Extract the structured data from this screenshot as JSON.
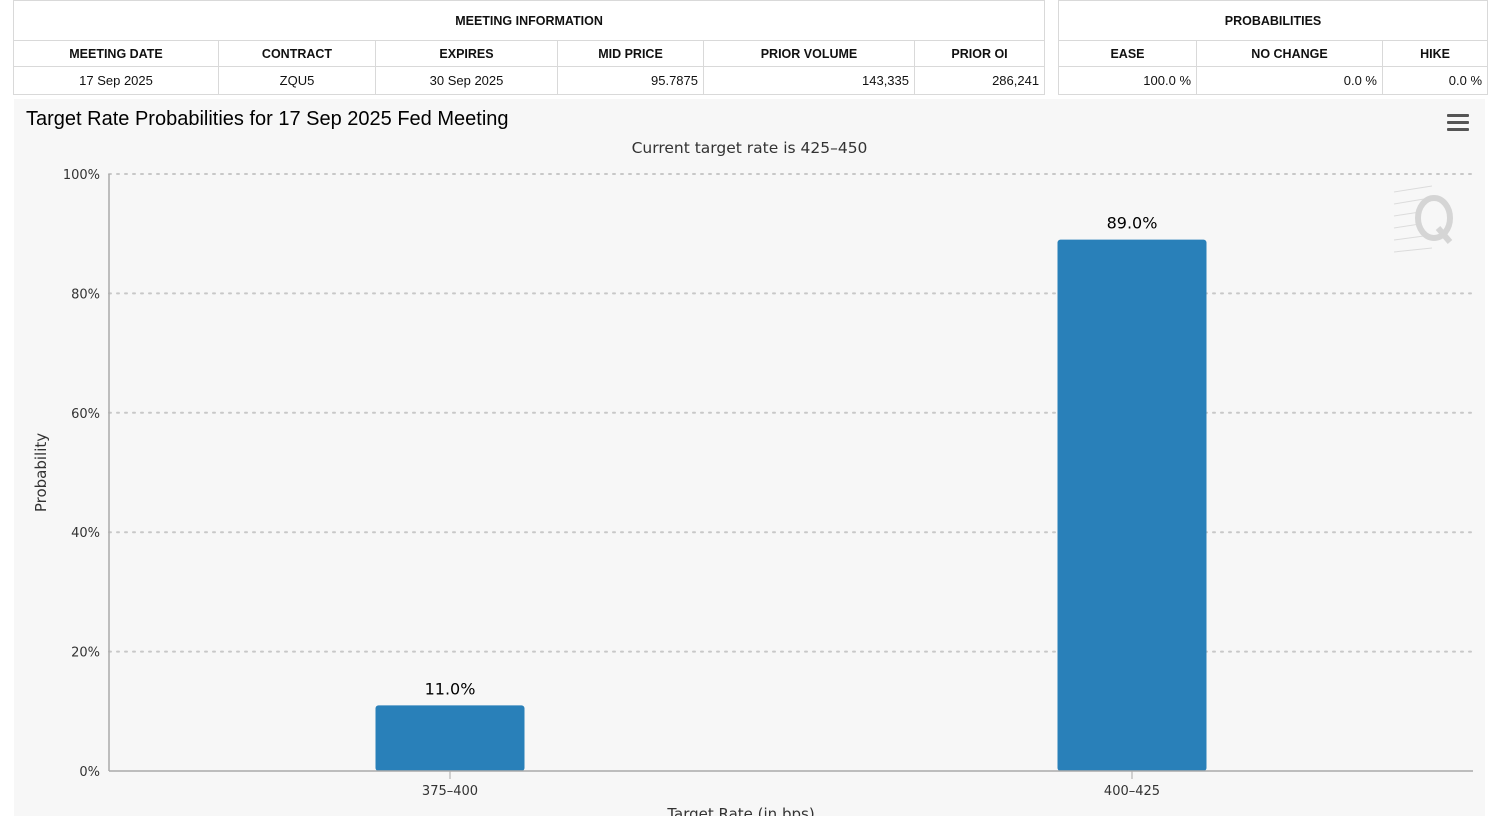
{
  "meeting_info": {
    "title": "MEETING INFORMATION",
    "headers": [
      "MEETING DATE",
      "CONTRACT",
      "EXPIRES",
      "MID PRICE",
      "PRIOR VOLUME",
      "PRIOR OI"
    ],
    "row": {
      "meeting_date": "17 Sep 2025",
      "contract": "ZQU5",
      "expires": "30 Sep 2025",
      "mid_price": "95.7875",
      "prior_volume": "143,335",
      "prior_oi": "286,241"
    }
  },
  "probabilities": {
    "title": "PROBABILITIES",
    "headers": [
      "EASE",
      "NO CHANGE",
      "HIKE"
    ],
    "row": {
      "ease": "100.0 %",
      "no_change": "0.0 %",
      "hike": "0.0 %"
    }
  },
  "chart": {
    "menu_icon": "hamburger-menu-icon",
    "watermark_icon": "q-logo-icon"
  },
  "chart_data": {
    "type": "bar",
    "title": "Target Rate Probabilities for 17 Sep 2025 Fed Meeting",
    "subtitle": "Current target rate is 425–450",
    "categories": [
      "375–400",
      "400–425"
    ],
    "values": [
      11.0,
      89.0
    ],
    "data_labels": [
      "11.0%",
      "89.0%"
    ],
    "xlabel": "Target Rate (in bps)",
    "ylabel": "Probability",
    "ylim": [
      0,
      100
    ],
    "yticks": [
      0,
      20,
      40,
      60,
      80,
      100
    ],
    "ytick_labels": [
      "0%",
      "20%",
      "40%",
      "60%",
      "80%",
      "100%"
    ],
    "grid": true,
    "bar_color": "#2980b9"
  }
}
